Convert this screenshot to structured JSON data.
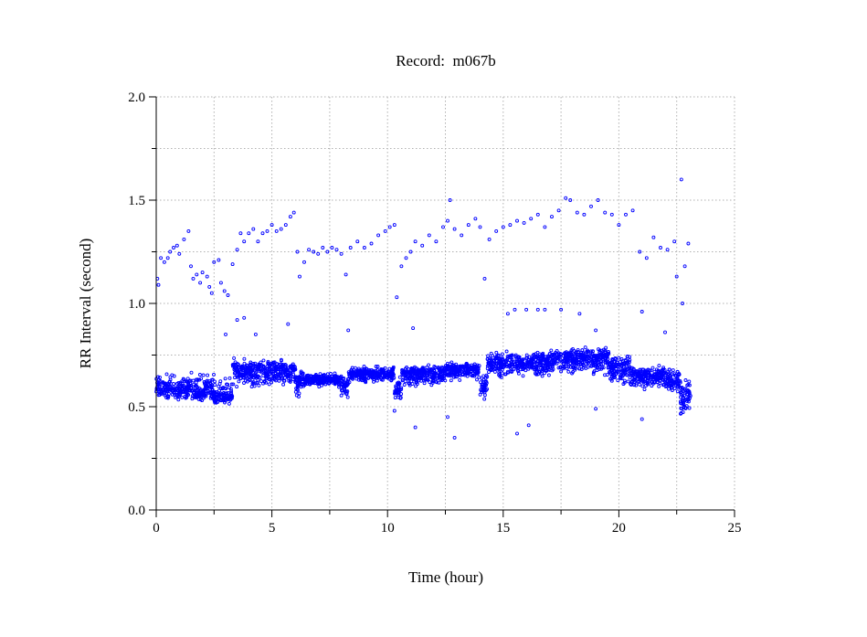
{
  "chart_data": {
    "type": "scatter",
    "title": "Record:  m067b",
    "xlabel": "Time (hour)",
    "ylabel": "RR Interval (second)",
    "xlim": [
      0,
      25
    ],
    "ylim": [
      0.0,
      2.0
    ],
    "xticks": [
      "0",
      "5",
      "10",
      "15",
      "20",
      "25"
    ],
    "xtick_values": [
      0,
      5,
      10,
      15,
      20,
      25
    ],
    "yticks": [
      "0.0",
      "0.5",
      "1.0",
      "1.5",
      "2.0"
    ],
    "ytick_values": [
      0,
      0.5,
      1.0,
      1.5,
      2.0
    ],
    "grid": true,
    "grid_style": "dotted",
    "marker": "open-circle",
    "marker_color": "#0000ff",
    "dense_band": [
      {
        "from": 0.0,
        "to": 1.5,
        "center": 0.59,
        "low": 0.52,
        "high": 0.67
      },
      {
        "from": 1.5,
        "to": 2.5,
        "center": 0.57,
        "low": 0.52,
        "high": 0.68
      },
      {
        "from": 2.5,
        "to": 3.3,
        "center": 0.55,
        "low": 0.5,
        "high": 0.66
      },
      {
        "from": 3.3,
        "to": 6.0,
        "center": 0.67,
        "low": 0.58,
        "high": 0.74
      },
      {
        "from": 6.0,
        "to": 6.4,
        "center": 0.62,
        "low": 0.52,
        "high": 0.7
      },
      {
        "from": 6.4,
        "to": 8.0,
        "center": 0.63,
        "low": 0.59,
        "high": 0.67
      },
      {
        "from": 8.0,
        "to": 8.3,
        "center": 0.6,
        "low": 0.53,
        "high": 0.66
      },
      {
        "from": 8.3,
        "to": 10.3,
        "center": 0.66,
        "low": 0.61,
        "high": 0.7
      },
      {
        "from": 10.3,
        "to": 10.6,
        "center": 0.58,
        "low": 0.52,
        "high": 0.66
      },
      {
        "from": 10.6,
        "to": 12.5,
        "center": 0.66,
        "low": 0.59,
        "high": 0.71
      },
      {
        "from": 12.5,
        "to": 14.0,
        "center": 0.68,
        "low": 0.62,
        "high": 0.72
      },
      {
        "from": 14.0,
        "to": 14.3,
        "center": 0.6,
        "low": 0.53,
        "high": 0.7
      },
      {
        "from": 14.3,
        "to": 17.0,
        "center": 0.71,
        "low": 0.63,
        "high": 0.78
      },
      {
        "from": 17.0,
        "to": 19.6,
        "center": 0.73,
        "low": 0.64,
        "high": 0.8
      },
      {
        "from": 19.6,
        "to": 20.5,
        "center": 0.69,
        "low": 0.6,
        "high": 0.77
      },
      {
        "from": 20.5,
        "to": 22.0,
        "center": 0.65,
        "low": 0.58,
        "high": 0.71
      },
      {
        "from": 22.0,
        "to": 22.6,
        "center": 0.62,
        "low": 0.55,
        "high": 0.7
      },
      {
        "from": 22.6,
        "to": 23.1,
        "center": 0.55,
        "low": 0.44,
        "high": 0.67
      }
    ],
    "upper_points": [
      [
        0.05,
        1.12
      ],
      [
        0.1,
        1.09
      ],
      [
        0.2,
        1.22
      ],
      [
        0.35,
        1.2
      ],
      [
        0.5,
        1.22
      ],
      [
        0.6,
        1.25
      ],
      [
        0.75,
        1.27
      ],
      [
        0.9,
        1.28
      ],
      [
        1.0,
        1.24
      ],
      [
        1.2,
        1.31
      ],
      [
        1.4,
        1.35
      ],
      [
        1.5,
        1.18
      ],
      [
        1.6,
        1.12
      ],
      [
        1.75,
        1.14
      ],
      [
        1.9,
        1.1
      ],
      [
        2.0,
        1.15
      ],
      [
        2.2,
        1.13
      ],
      [
        2.3,
        1.08
      ],
      [
        2.4,
        1.05
      ],
      [
        2.5,
        1.2
      ],
      [
        2.7,
        1.21
      ],
      [
        2.8,
        1.1
      ],
      [
        2.95,
        1.06
      ],
      [
        3.1,
        1.04
      ],
      [
        3.3,
        1.19
      ],
      [
        3.5,
        1.26
      ],
      [
        3.65,
        1.34
      ],
      [
        3.8,
        1.3
      ],
      [
        4.0,
        1.34
      ],
      [
        4.2,
        1.36
      ],
      [
        4.4,
        1.3
      ],
      [
        4.6,
        1.34
      ],
      [
        4.8,
        1.35
      ],
      [
        5.0,
        1.38
      ],
      [
        5.2,
        1.35
      ],
      [
        5.4,
        1.36
      ],
      [
        5.6,
        1.38
      ],
      [
        5.8,
        1.42
      ],
      [
        5.95,
        1.44
      ],
      [
        6.1,
        1.25
      ],
      [
        6.2,
        1.13
      ],
      [
        6.4,
        1.2
      ],
      [
        6.6,
        1.26
      ],
      [
        6.8,
        1.25
      ],
      [
        7.0,
        1.24
      ],
      [
        7.2,
        1.27
      ],
      [
        7.4,
        1.25
      ],
      [
        7.6,
        1.27
      ],
      [
        7.8,
        1.26
      ],
      [
        8.0,
        1.24
      ],
      [
        8.2,
        1.14
      ],
      [
        8.4,
        1.27
      ],
      [
        8.7,
        1.3
      ],
      [
        9.0,
        1.27
      ],
      [
        9.3,
        1.29
      ],
      [
        9.6,
        1.33
      ],
      [
        9.9,
        1.35
      ],
      [
        10.1,
        1.37
      ],
      [
        10.3,
        1.38
      ],
      [
        10.4,
        1.03
      ],
      [
        10.6,
        1.18
      ],
      [
        10.8,
        1.22
      ],
      [
        11.0,
        1.25
      ],
      [
        11.2,
        1.3
      ],
      [
        11.5,
        1.28
      ],
      [
        11.8,
        1.33
      ],
      [
        12.1,
        1.3
      ],
      [
        12.4,
        1.37
      ],
      [
        12.6,
        1.4
      ],
      [
        12.7,
        1.5
      ],
      [
        12.9,
        1.36
      ],
      [
        13.2,
        1.33
      ],
      [
        13.5,
        1.38
      ],
      [
        13.8,
        1.41
      ],
      [
        14.0,
        1.37
      ],
      [
        14.2,
        1.12
      ],
      [
        14.4,
        1.31
      ],
      [
        14.7,
        1.35
      ],
      [
        15.0,
        1.37
      ],
      [
        15.3,
        1.38
      ],
      [
        15.6,
        1.4
      ],
      [
        15.9,
        1.39
      ],
      [
        16.2,
        1.41
      ],
      [
        16.5,
        1.43
      ],
      [
        16.8,
        1.37
      ],
      [
        17.1,
        1.42
      ],
      [
        17.4,
        1.45
      ],
      [
        17.7,
        1.51
      ],
      [
        17.9,
        1.5
      ],
      [
        18.2,
        1.44
      ],
      [
        18.5,
        1.43
      ],
      [
        18.8,
        1.47
      ],
      [
        19.1,
        1.5
      ],
      [
        19.4,
        1.44
      ],
      [
        19.7,
        1.43
      ],
      [
        20.0,
        1.38
      ],
      [
        20.3,
        1.43
      ],
      [
        20.6,
        1.45
      ],
      [
        20.9,
        1.25
      ],
      [
        21.2,
        1.22
      ],
      [
        21.5,
        1.32
      ],
      [
        21.8,
        1.27
      ],
      [
        22.1,
        1.26
      ],
      [
        22.4,
        1.3
      ],
      [
        22.5,
        1.13
      ],
      [
        22.7,
        1.6
      ],
      [
        22.75,
        1.0
      ],
      [
        22.85,
        1.18
      ],
      [
        23.0,
        1.29
      ]
    ],
    "scattered_points": [
      [
        3.0,
        0.85
      ],
      [
        3.5,
        0.92
      ],
      [
        3.8,
        0.93
      ],
      [
        4.3,
        0.85
      ],
      [
        5.7,
        0.9
      ],
      [
        8.3,
        0.87
      ],
      [
        11.1,
        0.88
      ],
      [
        15.2,
        0.95
      ],
      [
        15.5,
        0.97
      ],
      [
        16.0,
        0.97
      ],
      [
        16.5,
        0.97
      ],
      [
        16.8,
        0.97
      ],
      [
        17.5,
        0.97
      ],
      [
        18.3,
        0.95
      ],
      [
        19.0,
        0.87
      ],
      [
        21.0,
        0.96
      ],
      [
        22.0,
        0.86
      ],
      [
        10.3,
        0.48
      ],
      [
        11.2,
        0.4
      ],
      [
        12.9,
        0.35
      ],
      [
        12.6,
        0.45
      ],
      [
        15.6,
        0.37
      ],
      [
        16.1,
        0.41
      ],
      [
        19.0,
        0.49
      ],
      [
        21.0,
        0.44
      ]
    ]
  }
}
